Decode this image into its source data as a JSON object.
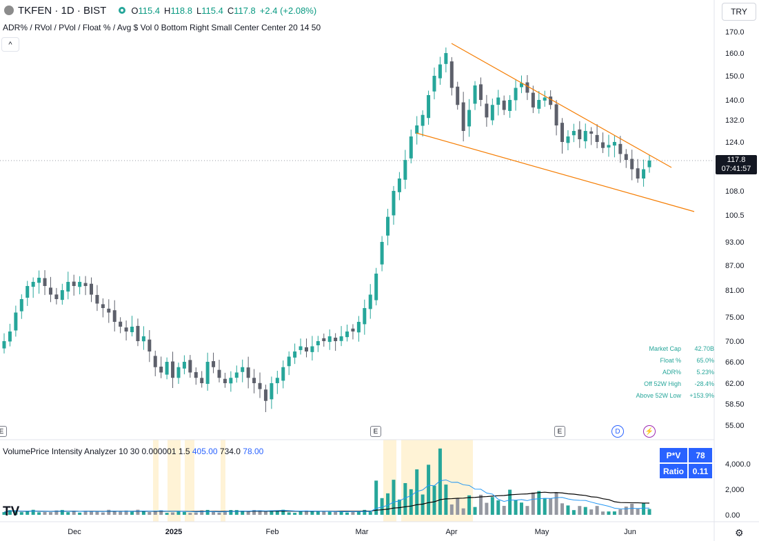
{
  "header": {
    "symbol": "TKFEN · 1D · BIST",
    "ohlc": [
      {
        "label": "O",
        "value": "115.4"
      },
      {
        "label": "H",
        "value": "118.8"
      },
      {
        "label": "L",
        "value": "115.4"
      },
      {
        "label": "C",
        "value": "117.8"
      }
    ],
    "change": "+2.4 (+2.08%)",
    "indicator_line": "ADR% / RVol / PVol / Float % / Avg $ Vol 0 Bottom Right Small Center Center 20 14 50",
    "collapse_glyph": "^",
    "currency": "TRY"
  },
  "price_tag": {
    "price": "117.8",
    "countdown": "07:41:57"
  },
  "price_axis": [
    "170.0",
    "160.0",
    "150.0",
    "140.0",
    "132.0",
    "124.0",
    "117.8",
    "108.0",
    "100.5",
    "93.00",
    "87.00",
    "81.00",
    "75.00",
    "70.00",
    "66.00",
    "62.00",
    "58.50",
    "55.00"
  ],
  "volume_axis": [
    "4,000.0",
    "2,000",
    "0.00"
  ],
  "time_axis": [
    {
      "label": "Dec",
      "bold": false
    },
    {
      "label": "2025",
      "bold": true
    },
    {
      "label": "Feb",
      "bold": false
    },
    {
      "label": "Mar",
      "bold": false
    },
    {
      "label": "Apr",
      "bold": false
    },
    {
      "label": "May",
      "bold": false
    },
    {
      "label": "Jun",
      "bold": false
    }
  ],
  "stats": [
    {
      "key": "Market Cap",
      "value": "42.70B"
    },
    {
      "key": "Float %",
      "value": "65.0%"
    },
    {
      "key": "ADR%",
      "value": "5.23%"
    },
    {
      "key": "Off 52W High",
      "value": "-28.4%"
    },
    {
      "key": "Above 52W Low",
      "value": "+153.9%"
    }
  ],
  "events": [
    "E",
    "E",
    "E",
    "D",
    "⚡"
  ],
  "indicator": {
    "name": "VolumePrice Intensity Analyzer 10 30 0.000001 1.5",
    "v1": "405.00",
    "v2": "734.0",
    "v3": "78.00"
  },
  "pv_table": [
    {
      "key": "P*V",
      "value": "78"
    },
    {
      "key": "Ratio",
      "value": "0.11"
    }
  ],
  "logo": "TV",
  "colors": {
    "up": "#26a69a",
    "down": "#5d606b",
    "trendline": "#f57c00",
    "highlight": "#fff3d6",
    "ma_fast": "#2196f3",
    "ma_slow": "#000000",
    "vol_up": "#26a69a",
    "vol_down": "#9598a1"
  },
  "chart_data": {
    "type": "candlestick",
    "ylim": [
      55,
      170
    ],
    "close_sequence": [
      70,
      72,
      76,
      79,
      82,
      83,
      84,
      82,
      80,
      79,
      81,
      83,
      82,
      83,
      82,
      80,
      78,
      77,
      76,
      74,
      73,
      72,
      73,
      70,
      71,
      68,
      65,
      64,
      66,
      63,
      65,
      66,
      64,
      63,
      62,
      66,
      65,
      63,
      62,
      63,
      64,
      65,
      63,
      62,
      61,
      59,
      62,
      63,
      65,
      67,
      68,
      69,
      68,
      69,
      70,
      70,
      71,
      70,
      71,
      72,
      72,
      74,
      77,
      80,
      85,
      93,
      100,
      108,
      112,
      118,
      126,
      130,
      134,
      142,
      150,
      155,
      160,
      145,
      138,
      128,
      136,
      146,
      140,
      133,
      138,
      141,
      136,
      140,
      145,
      147,
      143,
      137,
      140,
      141,
      138,
      130,
      124,
      126,
      128,
      125,
      128,
      127,
      124,
      122,
      123,
      124,
      120,
      118,
      115,
      112,
      115,
      117.8
    ]
  }
}
